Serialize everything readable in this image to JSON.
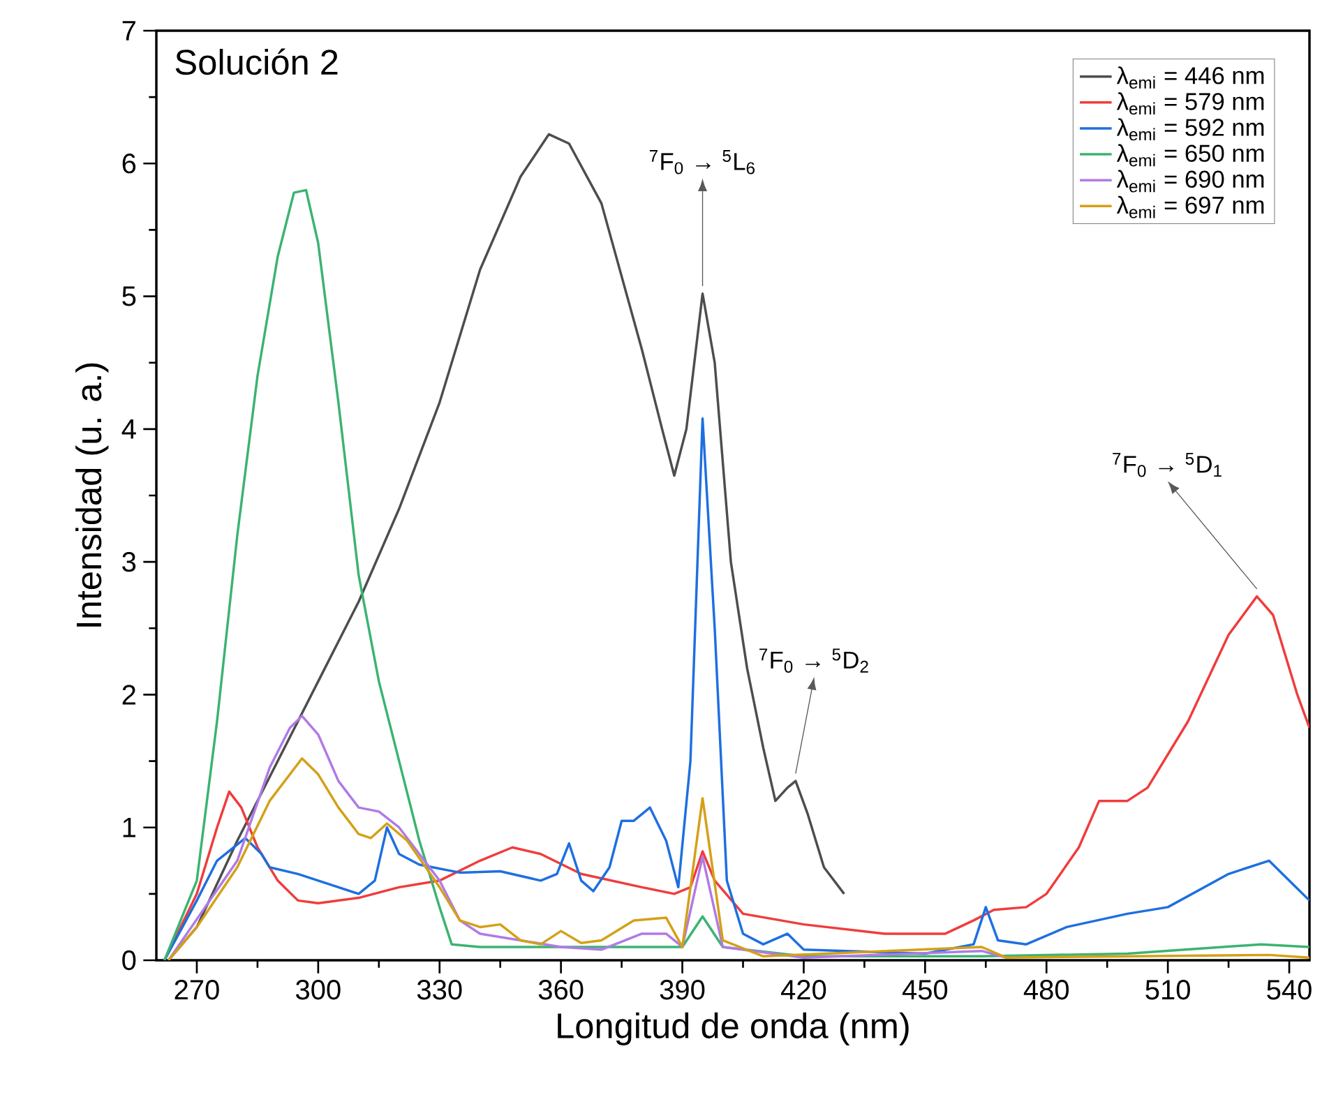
{
  "chart_data": {
    "type": "line",
    "xlabel": "Longitud de onda (nm)",
    "ylabel": "Intensidad (u. a.)",
    "xlim": [
      260,
      545
    ],
    "ylim": [
      0,
      7
    ],
    "xticks": [
      270,
      300,
      330,
      360,
      390,
      420,
      450,
      480,
      510,
      540
    ],
    "yticks": [
      0,
      1,
      2,
      3,
      4,
      5,
      6,
      7
    ],
    "legend": "top right",
    "annotations": [
      "Solución 2",
      {
        "text": "$^{7}$F$_{0}$ → $^{5}$L$_{6}$",
        "x": 395,
        "y": 5.02
      },
      {
        "text": "$^{7}$F$_{0}$ → $^{5}$D$_{2}$",
        "x": 418,
        "y": 1.35
      },
      {
        "text": "$^{7}$F$_{0}$ → $^{5}$D$_{1}$",
        "x": 532,
        "y": 2.74
      }
    ],
    "series": [
      {
        "name": "λ$_{emi}$ = 446 nm",
        "color": "#4d4d4d",
        "x": [
          263,
          270,
          280,
          290,
          300,
          310,
          320,
          330,
          340,
          350,
          357,
          362,
          370,
          380,
          385,
          388,
          391,
          395,
          398,
          402,
          406,
          410,
          413,
          416,
          418,
          421,
          425,
          430
        ],
        "values": [
          0,
          0.25,
          0.9,
          1.5,
          2.1,
          2.7,
          3.4,
          4.2,
          5.2,
          5.9,
          6.22,
          6.15,
          5.7,
          4.6,
          4.0,
          3.65,
          4.0,
          5.02,
          4.5,
          3.0,
          2.2,
          1.6,
          1.2,
          1.3,
          1.35,
          1.1,
          0.7,
          0.5
        ]
      },
      {
        "name": "λ$_{emi}$ = 579 nm",
        "color": "#f03c3c",
        "x": [
          262,
          270,
          275,
          278,
          281,
          285,
          290,
          295,
          300,
          310,
          320,
          330,
          340,
          348,
          355,
          365,
          380,
          388,
          392,
          395,
          398,
          405,
          420,
          440,
          455,
          462,
          467,
          475,
          480,
          488,
          493,
          500,
          505,
          515,
          525,
          532,
          536,
          542,
          545
        ],
        "values": [
          0,
          0.5,
          1.0,
          1.27,
          1.15,
          0.85,
          0.6,
          0.45,
          0.43,
          0.47,
          0.55,
          0.6,
          0.75,
          0.85,
          0.8,
          0.65,
          0.55,
          0.5,
          0.55,
          0.82,
          0.6,
          0.35,
          0.27,
          0.2,
          0.2,
          0.3,
          0.38,
          0.4,
          0.5,
          0.85,
          1.2,
          1.2,
          1.3,
          1.8,
          2.45,
          2.74,
          2.6,
          2.0,
          1.75
        ]
      },
      {
        "name": "λ$_{emi}$ = 592 nm",
        "color": "#1e6fe0",
        "x": [
          262,
          270,
          275,
          282,
          286,
          288,
          295,
          305,
          310,
          314,
          317,
          320,
          325,
          335,
          345,
          355,
          359,
          362,
          365,
          368,
          372,
          375,
          378,
          382,
          386,
          389,
          392,
          395,
          398,
          401,
          405,
          410,
          416,
          420,
          450,
          462,
          465,
          468,
          475,
          485,
          500,
          510,
          525,
          535,
          540,
          545
        ],
        "values": [
          0,
          0.45,
          0.75,
          0.92,
          0.8,
          0.7,
          0.65,
          0.55,
          0.5,
          0.6,
          1.0,
          0.8,
          0.72,
          0.66,
          0.67,
          0.6,
          0.65,
          0.88,
          0.6,
          0.52,
          0.7,
          1.05,
          1.05,
          1.15,
          0.9,
          0.55,
          1.5,
          4.08,
          2.5,
          0.6,
          0.2,
          0.12,
          0.2,
          0.08,
          0.05,
          0.12,
          0.4,
          0.15,
          0.12,
          0.25,
          0.35,
          0.4,
          0.65,
          0.75,
          0.6,
          0.45
        ]
      },
      {
        "name": "λ$_{emi}$ = 650 nm",
        "color": "#3cb371",
        "x": [
          262,
          270,
          275,
          280,
          285,
          290,
          294,
          297,
          300,
          305,
          310,
          315,
          320,
          325,
          330,
          333,
          340,
          360,
          380,
          390,
          395,
          400,
          420,
          464,
          500,
          533,
          545
        ],
        "values": [
          0,
          0.6,
          1.8,
          3.2,
          4.4,
          5.3,
          5.78,
          5.8,
          5.4,
          4.2,
          2.9,
          2.1,
          1.5,
          0.9,
          0.4,
          0.12,
          0.1,
          0.1,
          0.1,
          0.1,
          0.33,
          0.1,
          0.03,
          0.03,
          0.05,
          0.12,
          0.1
        ]
      },
      {
        "name": "λ$_{emi}$ = 690 nm",
        "color": "#b07ae6",
        "x": [
          263,
          280,
          288,
          293,
          296,
          300,
          305,
          310,
          315,
          320,
          325,
          330,
          335,
          340,
          350,
          360,
          370,
          380,
          386,
          390,
          395,
          400,
          420,
          464,
          470
        ],
        "values": [
          0,
          0.75,
          1.45,
          1.75,
          1.84,
          1.7,
          1.35,
          1.15,
          1.12,
          1.0,
          0.8,
          0.6,
          0.3,
          0.2,
          0.15,
          0.1,
          0.08,
          0.2,
          0.2,
          0.1,
          0.78,
          0.1,
          0.02,
          0.07,
          0.02
        ]
      },
      {
        "name": "λ$_{emi}$ = 697 nm",
        "color": "#d4a017",
        "x": [
          263,
          270,
          280,
          288,
          296,
          300,
          305,
          310,
          313,
          317,
          322,
          330,
          335,
          340,
          345,
          350,
          355,
          360,
          365,
          370,
          378,
          386,
          390,
          395,
          400,
          410,
          464,
          470,
          535,
          545
        ],
        "values": [
          0,
          0.25,
          0.7,
          1.2,
          1.52,
          1.4,
          1.15,
          0.95,
          0.92,
          1.03,
          0.9,
          0.55,
          0.3,
          0.25,
          0.27,
          0.15,
          0.12,
          0.22,
          0.13,
          0.15,
          0.3,
          0.32,
          0.1,
          1.22,
          0.15,
          0.03,
          0.1,
          0.02,
          0.04,
          0.02
        ]
      }
    ]
  }
}
